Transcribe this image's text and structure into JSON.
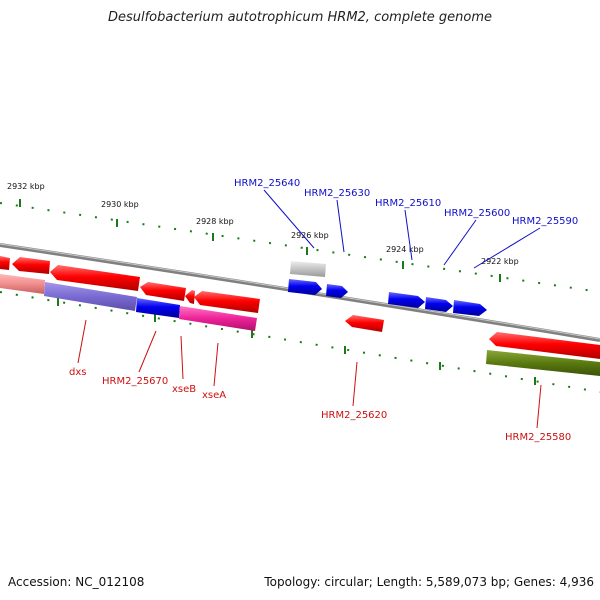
{
  "title": "Desulfobacterium autotrophicum HRM2, complete genome",
  "accession": "Accession: NC_012108",
  "summary": "Topology: circular; Length: 5,589,073 bp; Genes: 4,936",
  "ticks": {
    "t2932": "2932 kbp",
    "t2930": "2930 kbp",
    "t2928": "2928 kbp",
    "t2926": "2926 kbp",
    "t2924": "2924 kbp",
    "t2922": "2922 kbp"
  },
  "labels": {
    "g25640": "HRM2_25640",
    "g25630": "HRM2_25630",
    "g25610": "HRM2_25610",
    "g25600": "HRM2_25600",
    "g25590": "HRM2_25590",
    "dxs": "dxs",
    "g25670": "HRM2_25670",
    "xseB": "xseB",
    "xseA": "xseA",
    "g25620": "HRM2_25620",
    "g25580": "HRM2_25580"
  },
  "colors": {
    "backbone": "#808080",
    "tick": "#1a7a1a",
    "forward_gene": "#0000ee",
    "reverse_gene": "#ee0000",
    "pseudo_gene": "#bbbbbb",
    "magenta_track": "#ee2299",
    "olive_track": "#5a7a10"
  }
}
